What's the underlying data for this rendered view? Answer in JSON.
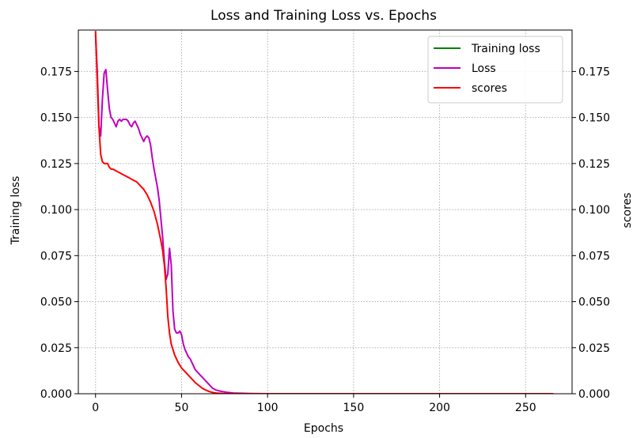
{
  "chart_data": {
    "type": "line",
    "title": "Loss and Training Loss vs. Epochs",
    "xlabel": "Epochs",
    "ylabel": "Training loss",
    "ylabel_right": "scores",
    "xlim": [
      -10,
      277
    ],
    "ylim": [
      0,
      0.1975
    ],
    "xticks": [
      0,
      50,
      100,
      150,
      200,
      250
    ],
    "yticks": [
      0.0,
      0.025,
      0.05,
      0.075,
      0.1,
      0.125,
      0.15,
      0.175
    ],
    "ytick_labels": [
      "0.000",
      "0.025",
      "0.050",
      "0.075",
      "0.100",
      "0.125",
      "0.150",
      "0.175"
    ],
    "xtick_labels": [
      "0",
      "50",
      "100",
      "150",
      "200",
      "250"
    ],
    "grid": true,
    "legend_position": "top-right",
    "series": [
      {
        "name": "Training loss",
        "color": "#008000",
        "points": [
          [
            0,
            0.2
          ],
          [
            266,
            0.2
          ]
        ]
      },
      {
        "name": "Loss",
        "color": "#bf00bf",
        "points": [
          [
            0,
            0.195
          ],
          [
            1,
            0.175
          ],
          [
            2,
            0.145
          ],
          [
            3,
            0.14
          ],
          [
            4,
            0.16
          ],
          [
            5,
            0.174
          ],
          [
            6,
            0.176
          ],
          [
            7,
            0.165
          ],
          [
            8,
            0.155
          ],
          [
            9,
            0.15
          ],
          [
            10,
            0.149
          ],
          [
            11,
            0.147
          ],
          [
            12,
            0.145
          ],
          [
            13,
            0.148
          ],
          [
            14,
            0.149
          ],
          [
            15,
            0.148
          ],
          [
            16,
            0.149
          ],
          [
            18,
            0.149
          ],
          [
            19,
            0.148
          ],
          [
            20,
            0.146
          ],
          [
            21,
            0.145
          ],
          [
            22,
            0.147
          ],
          [
            23,
            0.148
          ],
          [
            24,
            0.146
          ],
          [
            25,
            0.144
          ],
          [
            26,
            0.141
          ],
          [
            27,
            0.139
          ],
          [
            28,
            0.137
          ],
          [
            29,
            0.139
          ],
          [
            30,
            0.14
          ],
          [
            31,
            0.139
          ],
          [
            32,
            0.135
          ],
          [
            33,
            0.128
          ],
          [
            34,
            0.122
          ],
          [
            35,
            0.117
          ],
          [
            36,
            0.112
          ],
          [
            37,
            0.105
          ],
          [
            38,
            0.095
          ],
          [
            39,
            0.085
          ],
          [
            40,
            0.072
          ],
          [
            41,
            0.062
          ],
          [
            42,
            0.065
          ],
          [
            43,
            0.079
          ],
          [
            44,
            0.07
          ],
          [
            45,
            0.045
          ],
          [
            46,
            0.035
          ],
          [
            47,
            0.033
          ],
          [
            48,
            0.033
          ],
          [
            49,
            0.034
          ],
          [
            50,
            0.032
          ],
          [
            51,
            0.027
          ],
          [
            52,
            0.024
          ],
          [
            53,
            0.022
          ],
          [
            54,
            0.02
          ],
          [
            55,
            0.019
          ],
          [
            56,
            0.017
          ],
          [
            57,
            0.015
          ],
          [
            58,
            0.013
          ],
          [
            59,
            0.012
          ],
          [
            60,
            0.011
          ],
          [
            62,
            0.009
          ],
          [
            64,
            0.007
          ],
          [
            66,
            0.005
          ],
          [
            68,
            0.003
          ],
          [
            70,
            0.002
          ],
          [
            73,
            0.0013
          ],
          [
            76,
            0.0008
          ],
          [
            80,
            0.0004
          ],
          [
            90,
            0.0001
          ],
          [
            100,
            0.0
          ],
          [
            266,
            0.0
          ]
        ]
      },
      {
        "name": "scores",
        "color": "#ff0000",
        "points": [
          [
            0,
            0.197
          ],
          [
            1,
            0.17
          ],
          [
            2,
            0.145
          ],
          [
            3,
            0.13
          ],
          [
            4,
            0.126
          ],
          [
            5,
            0.125
          ],
          [
            6,
            0.125
          ],
          [
            7,
            0.125
          ],
          [
            8,
            0.123
          ],
          [
            9,
            0.122
          ],
          [
            10,
            0.122
          ],
          [
            12,
            0.121
          ],
          [
            14,
            0.12
          ],
          [
            16,
            0.119
          ],
          [
            18,
            0.118
          ],
          [
            20,
            0.117
          ],
          [
            22,
            0.116
          ],
          [
            24,
            0.115
          ],
          [
            26,
            0.113
          ],
          [
            28,
            0.111
          ],
          [
            30,
            0.108
          ],
          [
            32,
            0.104
          ],
          [
            34,
            0.099
          ],
          [
            36,
            0.092
          ],
          [
            38,
            0.083
          ],
          [
            39,
            0.078
          ],
          [
            40,
            0.07
          ],
          [
            41,
            0.058
          ],
          [
            42,
            0.042
          ],
          [
            43,
            0.033
          ],
          [
            44,
            0.027
          ],
          [
            46,
            0.021
          ],
          [
            48,
            0.017
          ],
          [
            50,
            0.014
          ],
          [
            52,
            0.012
          ],
          [
            54,
            0.01
          ],
          [
            56,
            0.008
          ],
          [
            58,
            0.006
          ],
          [
            60,
            0.0045
          ],
          [
            62,
            0.003
          ],
          [
            64,
            0.002
          ],
          [
            66,
            0.0012
          ],
          [
            68,
            0.0007
          ],
          [
            70,
            0.0004
          ],
          [
            74,
            0.0001
          ],
          [
            80,
            0.0
          ],
          [
            266,
            0.0
          ]
        ]
      }
    ]
  }
}
